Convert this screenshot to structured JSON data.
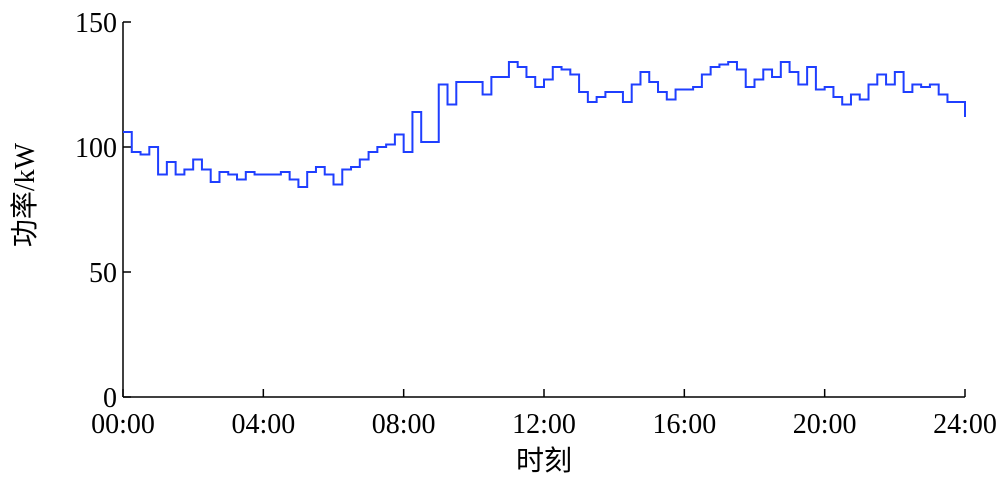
{
  "chart_data": {
    "type": "step",
    "x_label": "时刻",
    "y_label": "功率/kW",
    "color": "#1f3fff",
    "x": [
      0,
      0.25,
      0.5,
      0.75,
      1,
      1.25,
      1.5,
      1.75,
      2,
      2.25,
      2.5,
      2.75,
      3,
      3.25,
      3.5,
      3.75,
      4,
      4.25,
      4.5,
      4.75,
      5,
      5.25,
      5.5,
      5.75,
      6,
      6.25,
      6.5,
      6.75,
      7,
      7.25,
      7.5,
      7.75,
      8,
      8.25,
      8.5,
      8.75,
      9,
      9.25,
      9.5,
      9.75,
      10,
      10.25,
      10.5,
      10.75,
      11,
      11.25,
      11.5,
      11.75,
      12,
      12.25,
      12.5,
      12.75,
      13,
      13.25,
      13.5,
      13.75,
      14,
      14.25,
      14.5,
      14.75,
      15,
      15.25,
      15.5,
      15.75,
      16,
      16.25,
      16.5,
      16.75,
      17,
      17.25,
      17.5,
      17.75,
      18,
      18.25,
      18.5,
      18.75,
      19,
      19.25,
      19.5,
      19.75,
      20,
      20.25,
      20.5,
      20.75,
      21,
      21.25,
      21.5,
      21.75,
      22,
      22.25,
      22.5,
      22.75,
      23,
      23.25,
      23.5,
      23.75,
      24
    ],
    "values": [
      106,
      98,
      97,
      100,
      89,
      94,
      89,
      91,
      95,
      91,
      86,
      90,
      89,
      87,
      90,
      89,
      89,
      89,
      90,
      87,
      84,
      90,
      92,
      89,
      85,
      91,
      92,
      95,
      98,
      100,
      101,
      105,
      98,
      114,
      102,
      102,
      125,
      117,
      126,
      126,
      126,
      121,
      128,
      128,
      134,
      132,
      128,
      124,
      127,
      132,
      131,
      129,
      122,
      118,
      120,
      122,
      122,
      118,
      125,
      130,
      126,
      122,
      119,
      123,
      123,
      124,
      129,
      132,
      133,
      134,
      131,
      124,
      127,
      131,
      128,
      134,
      130,
      125,
      132,
      123,
      124,
      120,
      117,
      121,
      119,
      125,
      129,
      125,
      130,
      122,
      125,
      124,
      125,
      121,
      118,
      118,
      112
    ],
    "xlim": [
      0,
      24
    ],
    "xticks": [
      {
        "value": 0,
        "label": "00:00"
      },
      {
        "value": 4,
        "label": "04:00"
      },
      {
        "value": 8,
        "label": "08:00"
      },
      {
        "value": 12,
        "label": "12:00"
      },
      {
        "value": 16,
        "label": "16:00"
      },
      {
        "value": 20,
        "label": "20:00"
      },
      {
        "value": 24,
        "label": "24:00"
      }
    ],
    "ylim": [
      0,
      150
    ],
    "yticks": [
      0,
      50,
      100,
      150
    ]
  }
}
